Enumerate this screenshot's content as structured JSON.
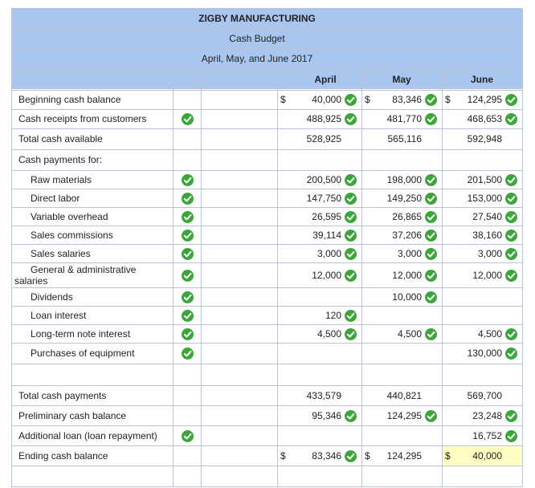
{
  "header": {
    "company": "ZIGBY MANUFACTURING",
    "title": "Cash Budget",
    "period": "April, May, and June 2017"
  },
  "columns": [
    "April",
    "May",
    "June"
  ],
  "rows": [
    {
      "label": "Beginning cash balance",
      "currency": "$",
      "values": [
        "40,000",
        "83,346",
        "124,295"
      ]
    },
    {
      "label": "Cash receipts from customers",
      "values": [
        "488,925",
        "481,770",
        "468,653"
      ]
    },
    {
      "label": "Total cash available",
      "values": [
        "528,925",
        "565,116",
        "592,948"
      ]
    },
    {
      "label": "Cash payments for:",
      "values": [
        null,
        null,
        null
      ]
    },
    {
      "label": "Raw materials",
      "values": [
        "200,500",
        "198,000",
        "201,500"
      ]
    },
    {
      "label": "Direct labor",
      "values": [
        "147,750",
        "149,250",
        "153,000"
      ]
    },
    {
      "label": "Variable overhead",
      "values": [
        "26,595",
        "26,865",
        "27,540"
      ]
    },
    {
      "label": "Sales commissions",
      "values": [
        "39,114",
        "37,206",
        "38,160"
      ]
    },
    {
      "label": "Sales salaries",
      "values": [
        "3,000",
        "3,000",
        "3,000"
      ]
    },
    {
      "label": "General & administrative salaries",
      "values": [
        "12,000",
        "12,000",
        "12,000"
      ]
    },
    {
      "label": "Dividends",
      "values": [
        null,
        "10,000",
        null
      ]
    },
    {
      "label": "Loan interest",
      "values": [
        "120",
        null,
        null
      ]
    },
    {
      "label": "Long-term note interest",
      "values": [
        "4,500",
        "4,500",
        "4,500"
      ]
    },
    {
      "label": "Purchases of equipment",
      "values": [
        null,
        null,
        "130,000"
      ]
    },
    {
      "label": null,
      "values": [
        null,
        null,
        null
      ]
    },
    {
      "label": "Total cash payments",
      "values": [
        "433,579",
        "440,821",
        "569,700"
      ]
    },
    {
      "label": "Preliminary cash balance",
      "values": [
        "95,346",
        "124,295",
        "23,248"
      ]
    },
    {
      "label": "Additional loan (loan repayment)",
      "values": [
        null,
        null,
        "16,752"
      ]
    },
    {
      "label": "Ending cash balance",
      "currency": "$",
      "values": [
        "83,346",
        "124,295",
        "40,000"
      ]
    },
    {
      "label": null,
      "values": [
        null,
        null,
        null
      ]
    }
  ]
}
